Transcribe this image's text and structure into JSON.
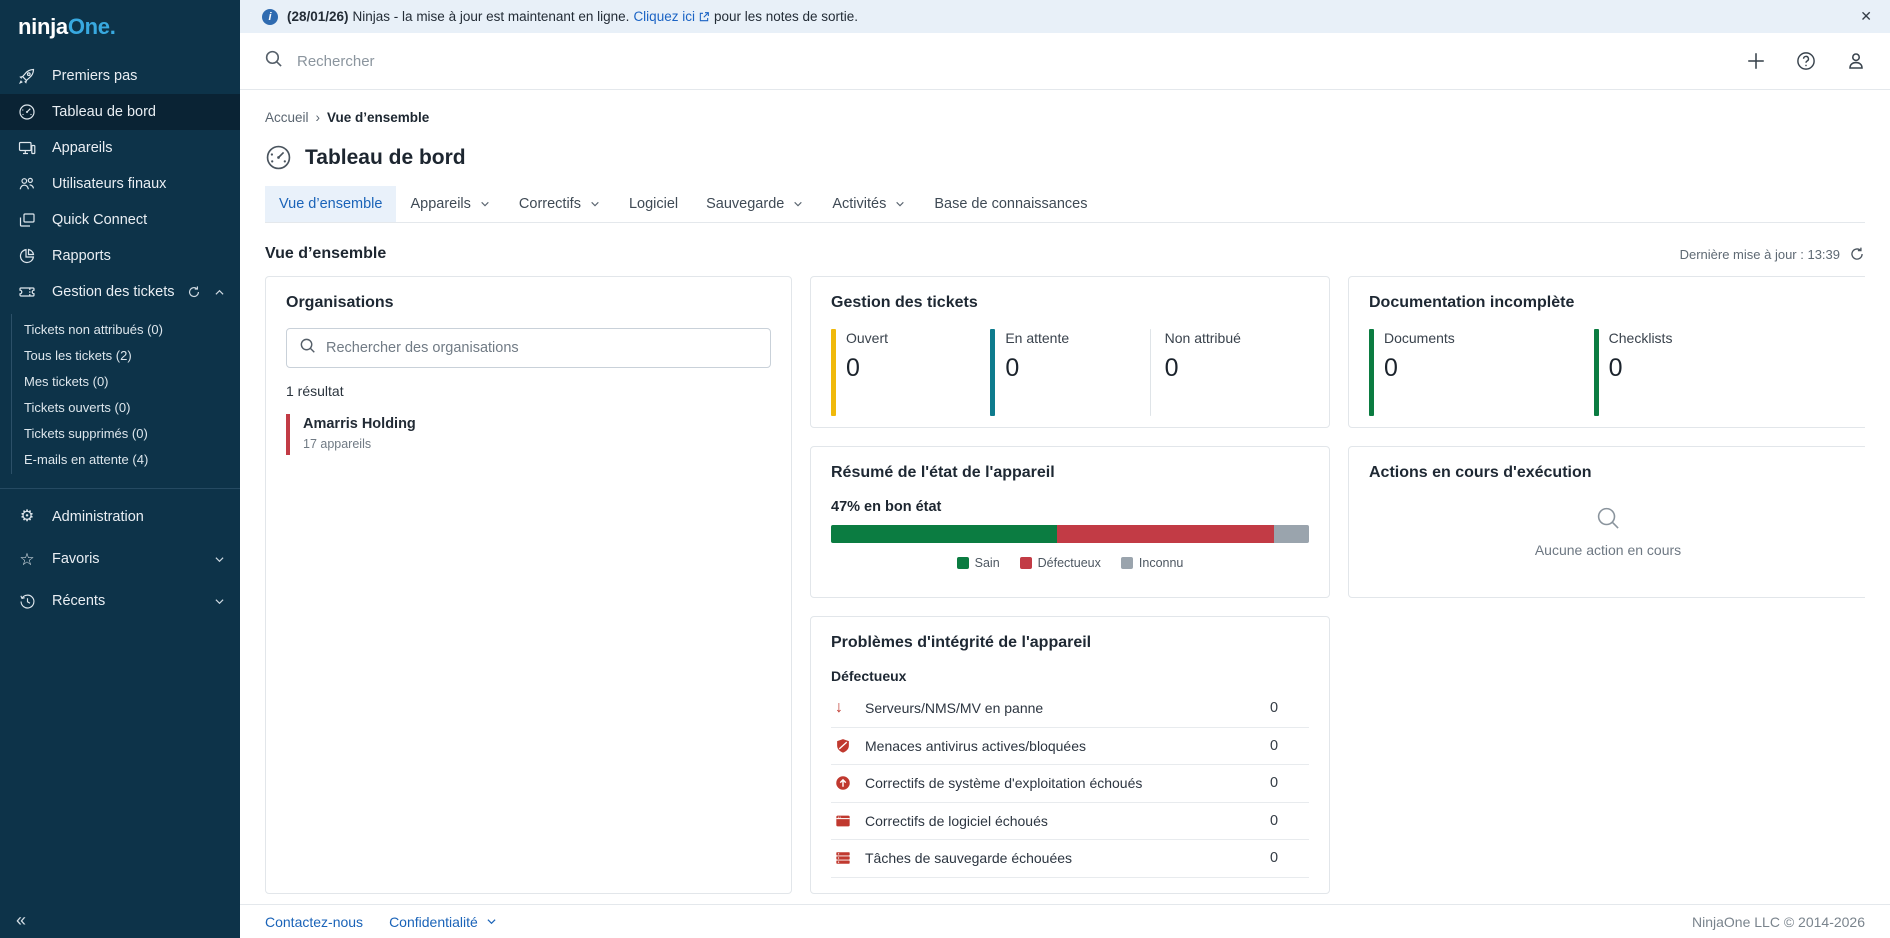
{
  "banner": {
    "date": "(28/01/26)",
    "text_before": "Ninjas - la mise à jour est maintenant en ligne.",
    "link_label": "Cliquez ici",
    "text_after": "pour les notes de sortie.",
    "close_label": "✕"
  },
  "topbar": {
    "search_placeholder": "Rechercher",
    "icons": [
      "plus-icon",
      "help-icon",
      "user-icon"
    ]
  },
  "sidebar": {
    "logo_part1": "ninja",
    "logo_part2": "One.",
    "items": [
      {
        "label": "Premiers pas",
        "icon": "rocket-icon"
      },
      {
        "label": "Tableau de bord",
        "icon": "gauge-icon",
        "active": true
      },
      {
        "label": "Appareils",
        "icon": "devices-icon"
      },
      {
        "label": "Utilisateurs finaux",
        "icon": "end-users-icon"
      },
      {
        "label": "Quick Connect",
        "icon": "quick-connect-icon"
      },
      {
        "label": "Rapports",
        "icon": "pie-chart-icon"
      },
      {
        "label": "Gestion des tickets",
        "icon": "ticket-icon",
        "expanded": true
      }
    ],
    "ticket_sub_items": [
      {
        "label": "Tickets non attribués (0)"
      },
      {
        "label": "Tous les tickets (2)"
      },
      {
        "label": "Mes tickets (0)"
      },
      {
        "label": "Tickets ouverts (0)"
      },
      {
        "label": "Tickets supprimés (0)"
      },
      {
        "label": "E-mails en attente (4)"
      }
    ],
    "bottom_items": [
      {
        "label": "Administration",
        "icon": "gear-icon",
        "glyph": "⚙"
      },
      {
        "label": "Favoris",
        "icon": "star-icon",
        "glyph": "☆",
        "caret": true
      },
      {
        "label": "Récents",
        "icon": "history-icon",
        "caret": true
      }
    ],
    "collapse_glyph": "«"
  },
  "page": {
    "breadcrumb_home": "Accueil",
    "breadcrumb_sep": "›",
    "breadcrumb_current": "Vue d’ensemble",
    "title": "Tableau de bord"
  },
  "tabs": [
    {
      "label": "Vue d’ensemble",
      "active": true
    },
    {
      "label": "Appareils",
      "caret": true
    },
    {
      "label": "Correctifs",
      "caret": true
    },
    {
      "label": "Logiciel"
    },
    {
      "label": "Sauvegarde",
      "caret": true
    },
    {
      "label": "Activités",
      "caret": true
    },
    {
      "label": "Base de connaissances"
    }
  ],
  "section": {
    "title": "Vue d’ensemble",
    "last_update": "Dernière mise à jour : 13:39"
  },
  "cards": {
    "organisations": {
      "title": "Organisations",
      "search_placeholder": "Rechercher des organisations",
      "result_count": "1 résultat",
      "items": [
        {
          "name": "Amarris Holding",
          "devices": "17 appareils",
          "accent": "#c23b45"
        }
      ]
    },
    "tickets": {
      "title": "Gestion des tickets",
      "stats": [
        {
          "label": "Ouvert",
          "value": "0",
          "color": "#f0b90b"
        },
        {
          "label": "En attente",
          "value": "0",
          "color": "#0e7b8d"
        },
        {
          "label": "Non attribué",
          "value": "0",
          "color": "#dfe4e8"
        }
      ]
    },
    "documentation": {
      "title": "Documentation incomplète",
      "stats": [
        {
          "label": "Documents",
          "value": "0",
          "color": "#0b7c41"
        },
        {
          "label": "Checklists",
          "value": "0",
          "color": "#0b7c41"
        }
      ]
    },
    "health": {
      "title": "Résumé de l'état de l'appareil",
      "summary": "47% en bon état",
      "segments": [
        {
          "label": "Sain",
          "pct": 47.3,
          "color": "#0b7c41"
        },
        {
          "label": "Défectueux",
          "pct": 45.4,
          "color": "#c23b45"
        },
        {
          "label": "Inconnu",
          "pct": 7.3,
          "color": "#9aa4ad"
        }
      ]
    },
    "actions": {
      "title": "Actions en cours d'exécution",
      "empty_text": "Aucune action en cours",
      "empty_icon": "search-icon"
    },
    "issues": {
      "title": "Problèmes d'intégrité de l'appareil",
      "subtitle": "Défectueux",
      "rows": [
        {
          "icon": "arrow-down-icon",
          "label": "Serveurs/NMS/MV en panne",
          "value": "0"
        },
        {
          "icon": "shield-icon",
          "label": "Menaces antivirus actives/bloquées",
          "value": "0"
        },
        {
          "icon": "arrow-up-circle-icon",
          "label": "Correctifs de système d'exploitation échoués",
          "value": "0"
        },
        {
          "icon": "window-icon",
          "label": "Correctifs de logiciel échoués",
          "value": "0"
        },
        {
          "icon": "server-icon",
          "label": "Tâches de sauvegarde échouées",
          "value": "0"
        }
      ]
    }
  },
  "footer": {
    "links": [
      {
        "label": "Contactez-nous"
      },
      {
        "label": "Confidentialité",
        "caret": true
      }
    ],
    "copyright": "NinjaOne LLC © 2014-2026"
  }
}
